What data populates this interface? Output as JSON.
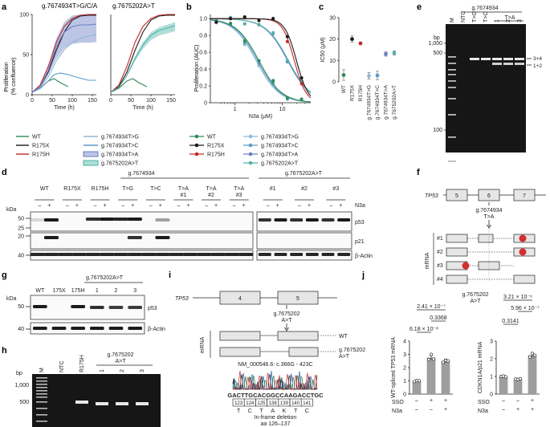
{
  "panels": {
    "a": {
      "label": "a",
      "title_left": "g.7674934T>G/C/A",
      "title_right": "g.7675202A>T",
      "ylabel": "Proliferation\n(% confluence)",
      "xlabel": "Time (h)",
      "yticks": [
        "0",
        "50",
        "100"
      ],
      "xticks": [
        "0",
        "50",
        "100",
        "150"
      ]
    },
    "b": {
      "label": "b",
      "ylabel": "Proliferation (AUC)",
      "xlabel": "N3a (μM)",
      "yticks": [
        "0",
        "0.2",
        "0.4",
        "0.6",
        "0.8",
        "1.0"
      ],
      "xticks": [
        "1",
        "10"
      ]
    },
    "c": {
      "label": "c",
      "ylabel": "IC50 (μM)",
      "yticks": [
        "0",
        "10",
        "20",
        "30"
      ],
      "categories": [
        "WT",
        "R175X",
        "R175H",
        "g.7674934T>G",
        "g.7674934T>C",
        "g.7674934T>A",
        "g.7675202A>T"
      ]
    },
    "d": {
      "label": "d",
      "kda": "kDa",
      "group1": "g.7674934",
      "group2": "g.7675202A>T",
      "lanes1": [
        "WT",
        "R175X",
        "R175H",
        "T>G",
        "T>C",
        "T>A\n#1",
        "T>A\n#2",
        "T>A\n#3"
      ],
      "lanes2": [
        "#1",
        "#2",
        "#3"
      ],
      "n3a": "N3a",
      "bands": [
        "p53",
        "p21",
        "β-Actin"
      ],
      "mw": [
        "50",
        "25",
        "20",
        "40"
      ]
    },
    "e": {
      "label": "e",
      "bp": "bp",
      "group": "g.7674934",
      "ta": "T>A",
      "lanes": [
        "M",
        "NTC",
        "T>G",
        "T>C",
        "1",
        "2",
        "3"
      ],
      "mw": [
        "1,000",
        "500",
        "100"
      ],
      "arrows": [
        "3+4",
        "1+2"
      ]
    },
    "f": {
      "label": "f",
      "gene": "TP53",
      "exons": [
        "5",
        "6",
        "7"
      ],
      "mut1": "g.7674934",
      "mut2": "T>A",
      "mrna": "mRNA",
      "isoforms": [
        "#1",
        "#2",
        "#3",
        "#4"
      ]
    },
    "g": {
      "label": "g",
      "kda": "kDa",
      "group": "g.7675202A>T",
      "lanes": [
        "WT",
        "175X",
        "175H",
        "1",
        "2",
        "3"
      ],
      "bands": [
        "p53",
        "β-Actin"
      ],
      "mw": [
        "50",
        "40"
      ]
    },
    "h": {
      "label": "h",
      "bp": "bp",
      "group": "g.7675202",
      "group2": "A>T",
      "lanes": [
        "M",
        "NTC",
        "R175H",
        "1",
        "2",
        "3"
      ],
      "mw": [
        "1,000",
        "500"
      ]
    },
    "i": {
      "label": "i",
      "gene": "TP53",
      "exons": [
        "4",
        "5"
      ],
      "mut1": "g.7675202",
      "mut2": "A>T",
      "mrna": "mRNA",
      "iso_wt": "WT",
      "iso_mut1": "g.7675202",
      "iso_mut2": "A>T",
      "refseq": "NM_000546.6: c.366G - 423C",
      "seq": "GACTTGCACGGCCAAGACCTGC",
      "codons": [
        "123",
        "124",
        "125",
        "138",
        "139",
        "140",
        "141"
      ],
      "aa": [
        "T",
        "C",
        "T",
        "A",
        "K",
        "T",
        "C"
      ],
      "note1": "In-frame deletion",
      "note2": "aa 126–137"
    },
    "j": {
      "label": "j",
      "ylabel_left": "WT-spliced\nTP53 mRNA",
      "ylabel_right": "CDKN1A/p21 mRNA",
      "right_title": "g.7675202\nA>T",
      "yticks_left": [
        "0",
        "1",
        "2",
        "3",
        "4"
      ],
      "yticks_right": [
        "0",
        "1",
        "2",
        "3"
      ],
      "pvals_left": [
        "2.41 × 10⁻⁷",
        "0.3368",
        "6.18 × 10⁻⁸"
      ],
      "pvals_right": [
        "3.21 × 10⁻⁶",
        "5.96 × 10⁻⁷",
        "0.3141"
      ],
      "sso": "SSO",
      "n3a": "N3a",
      "signs_sso": [
        "–",
        "+",
        "+"
      ],
      "signs_n3a": [
        "–",
        "–",
        "+"
      ],
      "signs_sso_r": [
        "–",
        "–",
        "+"
      ],
      "signs_n3a_r": [
        "–",
        "+",
        "+"
      ]
    }
  },
  "legend": {
    "items_left": [
      "WT",
      "R175X",
      "R175H"
    ],
    "items_right": [
      "g.7674934T>G",
      "g.7674934T>C",
      "g.7674934T>A",
      "g.7675202A>T"
    ]
  },
  "colors": {
    "wt": "#2e8b57",
    "r175x": "#1a1a1a",
    "r175h": "#c62828",
    "tg": "#8fb7d8",
    "tc": "#5a9bc7",
    "ta": "#6a7fc4",
    "at": "#4fb3a9",
    "band": "#1b1b1b"
  },
  "chart_data": [
    {
      "type": "line",
      "panel": "a-left",
      "title": "g.7674934T>G/C/A",
      "xlabel": "Time (h)",
      "ylabel": "Proliferation (% confluence)",
      "xlim": [
        0,
        160
      ],
      "ylim": [
        0,
        100
      ],
      "series": [
        {
          "name": "WT",
          "x": [
            0,
            20,
            40,
            55,
            70,
            90
          ],
          "values": [
            3,
            8,
            17,
            20,
            15,
            10
          ]
        },
        {
          "name": "R175X",
          "x": [
            0,
            20,
            40,
            60,
            80,
            100,
            120,
            140,
            160
          ],
          "values": [
            3,
            10,
            28,
            55,
            78,
            93,
            98,
            99,
            99
          ]
        },
        {
          "name": "R175H",
          "x": [
            0,
            20,
            40,
            60,
            80,
            100,
            120,
            140,
            160
          ],
          "values": [
            3,
            12,
            35,
            65,
            85,
            95,
            99,
            100,
            100
          ]
        },
        {
          "name": "g.7674934T>G",
          "x": [
            0,
            20,
            40,
            60,
            80,
            100,
            120,
            140,
            160
          ],
          "values": [
            3,
            9,
            22,
            42,
            56,
            65,
            70,
            73,
            75
          ]
        },
        {
          "name": "g.7674934T>C",
          "x": [
            0,
            20,
            40,
            55,
            70,
            90,
            110,
            140,
            160
          ],
          "values": [
            3,
            8,
            17,
            25,
            27,
            25,
            22,
            18,
            18
          ]
        },
        {
          "name": "g.7674934T>A",
          "x": [
            0,
            20,
            40,
            60,
            80,
            100,
            120,
            140,
            160
          ],
          "values": [
            3,
            10,
            30,
            60,
            78,
            85,
            87,
            87,
            88
          ]
        }
      ]
    },
    {
      "type": "line",
      "panel": "a-right",
      "title": "g.7675202A>T",
      "xlabel": "Time (h)",
      "xlim": [
        0,
        160
      ],
      "ylim": [
        0,
        100
      ],
      "series": [
        {
          "name": "WT",
          "x": [
            0,
            20,
            40,
            55,
            70,
            90
          ],
          "values": [
            3,
            8,
            17,
            20,
            15,
            10
          ]
        },
        {
          "name": "R175X",
          "x": [
            0,
            20,
            40,
            60,
            80,
            100,
            120,
            140,
            160
          ],
          "values": [
            3,
            10,
            28,
            55,
            78,
            93,
            98,
            99,
            99
          ]
        },
        {
          "name": "R175H",
          "x": [
            0,
            20,
            40,
            60,
            80,
            100,
            120,
            140,
            160
          ],
          "values": [
            3,
            12,
            35,
            65,
            85,
            95,
            99,
            100,
            100
          ]
        },
        {
          "name": "g.7675202A>T",
          "x": [
            0,
            20,
            40,
            60,
            80,
            100,
            120,
            140,
            160
          ],
          "values": [
            3,
            9,
            24,
            45,
            62,
            74,
            80,
            83,
            86
          ]
        }
      ]
    },
    {
      "type": "line",
      "panel": "b",
      "xlabel": "N3a (μM)",
      "ylabel": "Proliferation (AUC)",
      "xscale": "log",
      "xlim": [
        0.3,
        40
      ],
      "ylim": [
        0,
        1.05
      ],
      "series": [
        {
          "name": "WT",
          "ic50": 3.2
        },
        {
          "name": "R175X",
          "ic50": 20
        },
        {
          "name": "R175H",
          "ic50": 18
        },
        {
          "name": "g.7674934T>G",
          "ic50": 2.8
        },
        {
          "name": "g.7674934T>C",
          "ic50": 3.0
        },
        {
          "name": "g.7674934T>A",
          "ic50": 13
        },
        {
          "name": "g.7675202A>T",
          "ic50": 13.5
        }
      ]
    },
    {
      "type": "scatter",
      "panel": "c",
      "ylabel": "IC50 (μM)",
      "ylim": [
        0,
        30
      ],
      "categories": [
        "WT",
        "R175X",
        "R175H",
        "g.7674934T>G",
        "g.7674934T>C",
        "g.7674934T>A",
        "g.7675202A>T"
      ],
      "values": [
        3.2,
        20,
        18,
        2.8,
        3.0,
        13,
        13.5
      ],
      "errors": [
        2.5,
        1.5,
        0,
        1.5,
        2.0,
        1.0,
        1.0
      ]
    },
    {
      "type": "bar",
      "panel": "j-left",
      "ylabel": "WT-spliced TP53 mRNA",
      "ylim": [
        0,
        4
      ],
      "categories": [
        "SSO– N3a–",
        "SSO+ N3a–",
        "SSO+ N3a+"
      ],
      "values": [
        1.0,
        2.75,
        2.5
      ],
      "points": [
        [
          0.95,
          1.02,
          1.0
        ],
        [
          2.6,
          3.0,
          2.65
        ],
        [
          2.4,
          2.55,
          2.5
        ]
      ]
    },
    {
      "type": "bar",
      "panel": "j-right",
      "ylabel": "CDKN1A/p21 mRNA",
      "ylim": [
        0,
        3
      ],
      "categories": [
        "SSO– N3a–",
        "SSO– N3a+",
        "SSO+ N3a+"
      ],
      "values": [
        1.0,
        0.85,
        2.2
      ],
      "points": [
        [
          1.0,
          1.02,
          0.98
        ],
        [
          0.85,
          0.83,
          0.87
        ],
        [
          2.1,
          2.3,
          2.2
        ]
      ]
    }
  ]
}
